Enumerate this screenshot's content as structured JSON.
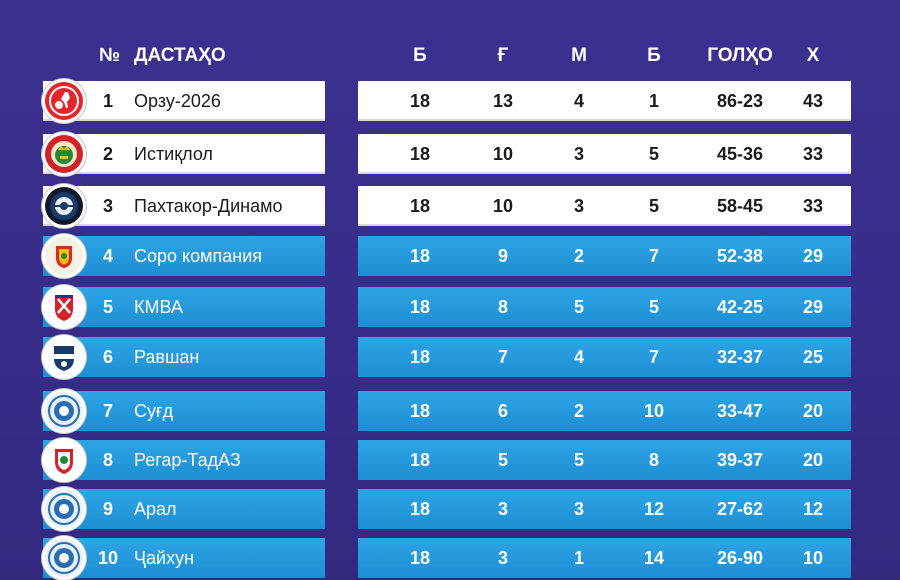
{
  "header": {
    "num": "№",
    "team": "ДАСТАҲО",
    "played": "Б",
    "wins": "Ғ",
    "draws": "М",
    "losses": "Б",
    "goals": "ГОЛҲО",
    "points": "Х"
  },
  "rows": [
    {
      "pos": "1",
      "team": "Орзу-2026",
      "played": "18",
      "wins": "13",
      "draws": "4",
      "losses": "1",
      "goals": "86-23",
      "points": "43",
      "style": "white",
      "logo": "orzu-logo"
    },
    {
      "pos": "2",
      "team": "Истиқлол",
      "played": "18",
      "wins": "10",
      "draws": "3",
      "losses": "5",
      "goals": "45-36",
      "points": "33",
      "style": "white",
      "logo": "istiqlol-logo"
    },
    {
      "pos": "3",
      "team": "Пахтакор-Динамо",
      "played": "18",
      "wins": "10",
      "draws": "3",
      "losses": "5",
      "goals": "58-45",
      "points": "33",
      "style": "white",
      "logo": "pakhtakor-logo"
    },
    {
      "pos": "4",
      "team": "Соро компания",
      "played": "18",
      "wins": "9",
      "draws": "2",
      "losses": "7",
      "goals": "52-38",
      "points": "29",
      "style": "blue",
      "logo": "soro-logo"
    },
    {
      "pos": "5",
      "team": "КМВА",
      "played": "18",
      "wins": "8",
      "draws": "5",
      "losses": "5",
      "goals": "42-25",
      "points": "29",
      "style": "blue",
      "logo": "kmva-logo"
    },
    {
      "pos": "6",
      "team": "Равшан",
      "played": "18",
      "wins": "7",
      "draws": "4",
      "losses": "7",
      "goals": "32-37",
      "points": "25",
      "style": "blue",
      "logo": "ravshan-logo"
    },
    {
      "pos": "7",
      "team": "Суғд",
      "played": "18",
      "wins": "6",
      "draws": "2",
      "losses": "10",
      "goals": "33-47",
      "points": "20",
      "style": "blue",
      "logo": "sughd-logo"
    },
    {
      "pos": "8",
      "team": "Регар-ТадАЗ",
      "played": "18",
      "wins": "5",
      "draws": "5",
      "losses": "8",
      "goals": "39-37",
      "points": "20",
      "style": "blue",
      "logo": "regar-logo"
    },
    {
      "pos": "9",
      "team": "Арал",
      "played": "18",
      "wins": "3",
      "draws": "3",
      "losses": "12",
      "goals": "27-62",
      "points": "12",
      "style": "blue",
      "logo": "aral-logo"
    },
    {
      "pos": "10",
      "team": "Ҷайхун",
      "played": "18",
      "wins": "3",
      "draws": "1",
      "losses": "14",
      "goals": "26-90",
      "points": "10",
      "style": "blue",
      "logo": "jaykhun-logo"
    }
  ],
  "colors": {
    "background": "#3a2f8c",
    "highlight_row": "#ffffff",
    "regular_row": "#1f93d8"
  }
}
